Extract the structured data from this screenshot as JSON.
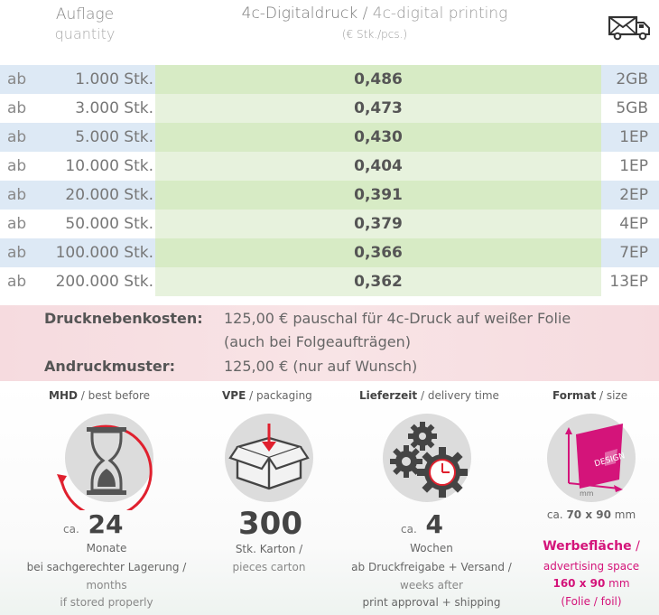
{
  "header": {
    "auflage": "Auflage",
    "quantity": "quantity",
    "title_de": "4c-Digitaldruck",
    "title_sep": " / ",
    "title_en": "4c-digital printing",
    "unit": "(€ Stk./pcs.)",
    "shipping_icon": "envelope-truck-icon"
  },
  "table": {
    "prefix": "ab",
    "rows": [
      {
        "qty": "1.000 Stk.",
        "price": "0,486",
        "code": "2GB"
      },
      {
        "qty": "3.000 Stk.",
        "price": "0,473",
        "code": "5GB"
      },
      {
        "qty": "5.000 Stk.",
        "price": "0,430",
        "code": "1EP"
      },
      {
        "qty": "10.000 Stk.",
        "price": "0,404",
        "code": "1EP"
      },
      {
        "qty": "20.000 Stk.",
        "price": "0,391",
        "code": "2EP"
      },
      {
        "qty": "50.000 Stk.",
        "price": "0,379",
        "code": "4EP"
      },
      {
        "qty": "100.000 Stk.",
        "price": "0,366",
        "code": "7EP"
      },
      {
        "qty": "200.000 Stk.",
        "price": "0,362",
        "code": "13EP"
      }
    ]
  },
  "costs": {
    "drucknebenkosten_label": "Drucknebenkosten:",
    "drucknebenkosten_line1": "125,00 € pauschal für 4c-Druck auf weißer Folie",
    "drucknebenkosten_line2": "(auch bei Folgeaufträgen)",
    "andruckmuster_label": "Andruckmuster:",
    "andruckmuster_text": "125,00 € (nur auf Wunsch)"
  },
  "features": {
    "mhd": {
      "title_bold": "MHD",
      "title_rest": " / best before",
      "ca": "ca.",
      "value": "24",
      "l1": "Monate",
      "l2": "bei sachgerechter Lagerung /",
      "l3": "months",
      "l4": "if stored properly",
      "icon": "hourglass-icon"
    },
    "vpe": {
      "title_bold": "VPE",
      "title_rest": " / packaging",
      "value": "300",
      "l1": "Stk. Karton /",
      "l2": "pieces carton",
      "icon": "box-icon"
    },
    "lieferzeit": {
      "title_bold": "Lieferzeit",
      "title_rest": " / delivery time",
      "ca": "ca.",
      "value": "4",
      "l1": "Wochen",
      "l2": "ab Druckfreigabe + Versand /",
      "l3": "weeks after",
      "l4": "print approval + shipping",
      "icon": "gears-clock-icon"
    },
    "format": {
      "title_bold": "Format",
      "title_rest": " / size",
      "size_ca": "ca.",
      "size_value": "70 x 90",
      "size_unit": "mm",
      "wf_bold": "Werbefläche",
      "wf_rest": " /",
      "wf_en": "advertising space",
      "wf_size": "160 x 90",
      "wf_unit": "mm",
      "wf_foil": "(Folie / foil)",
      "design_label": "DESIGN",
      "mm_label": "mm",
      "icon": "design-card-icon",
      "accent": "#d4147a"
    }
  }
}
